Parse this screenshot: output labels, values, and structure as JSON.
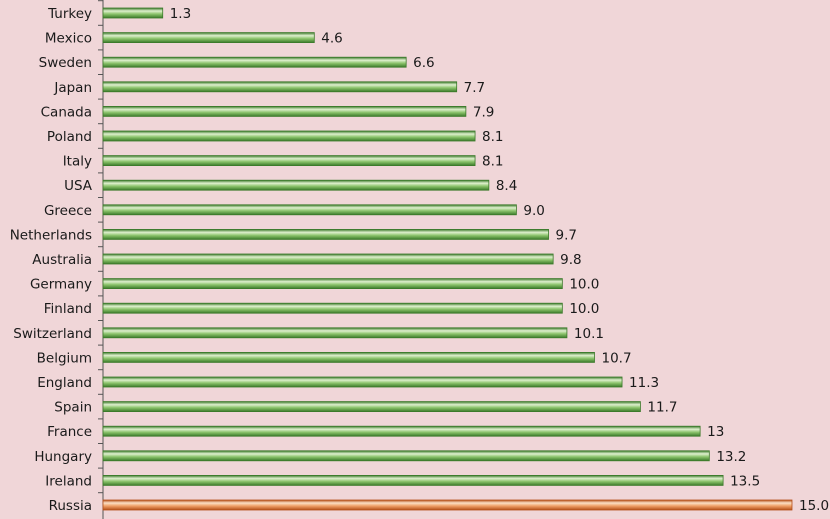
{
  "chart_data": {
    "type": "bar",
    "orientation": "horizontal",
    "categories": [
      "Turkey",
      "Mexico",
      "Sweden",
      "Japan",
      "Canada",
      "Poland",
      "Italy",
      "USA",
      "Greece",
      "Netherlands",
      "Australia",
      "Germany",
      "Finland",
      "Switzerland",
      "Belgium",
      "England",
      "Spain",
      "France",
      "Hungary",
      "Ireland",
      "Russia"
    ],
    "values": [
      1.3,
      4.6,
      6.6,
      7.7,
      7.9,
      8.1,
      8.1,
      8.4,
      9.0,
      9.7,
      9.8,
      10.0,
      10.0,
      10.1,
      10.7,
      11.3,
      11.7,
      13,
      13.2,
      13.5,
      15.0
    ],
    "value_labels": [
      "1.3",
      "4.6",
      "6.6",
      "7.7",
      "7.9",
      "8.1",
      "8.1",
      "8.4",
      "9.0",
      "9.7",
      "9.8",
      "10.0",
      "10.0",
      "10.1",
      "10.7",
      "11.3",
      "11.7",
      "13",
      "13.2",
      "13.5",
      "15.0"
    ],
    "highlight_category": "Russia",
    "xlim": [
      0,
      15.0
    ],
    "grid": false,
    "title": "",
    "xlabel": "",
    "ylabel": ""
  },
  "colors": {
    "background": "#f0d6d8",
    "bar_light": "#dff0cf",
    "bar_mid": "#8cc46c",
    "bar_dark": "#3b7a2a",
    "highlight_light": "#fbe0c6",
    "highlight_mid": "#ef9f66",
    "highlight_dark": "#b4501a",
    "axis": "#555555"
  }
}
